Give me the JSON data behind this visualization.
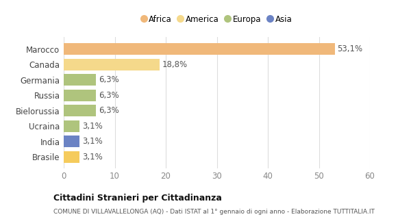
{
  "categories": [
    "Brasile",
    "India",
    "Ucraina",
    "Bielorussia",
    "Russia",
    "Germania",
    "Canada",
    "Marocco"
  ],
  "values": [
    3.1,
    3.1,
    3.1,
    6.3,
    6.3,
    6.3,
    18.8,
    53.1
  ],
  "bar_colors": [
    "#f5cb5c",
    "#6b83c4",
    "#afc47d",
    "#afc47d",
    "#afc47d",
    "#afc47d",
    "#f5d98b",
    "#f0b87a"
  ],
  "labels": [
    "3,1%",
    "3,1%",
    "3,1%",
    "6,3%",
    "6,3%",
    "6,3%",
    "18,8%",
    "53,1%"
  ],
  "show_label": [
    true,
    true,
    true,
    true,
    true,
    true,
    true,
    true
  ],
  "xlim": [
    0,
    60
  ],
  "xticks": [
    0,
    10,
    20,
    30,
    40,
    50,
    60
  ],
  "legend_items": [
    {
      "label": "Africa",
      "color": "#f0b87a"
    },
    {
      "label": "America",
      "color": "#f5d98b"
    },
    {
      "label": "Europa",
      "color": "#afc47d"
    },
    {
      "label": "Asia",
      "color": "#6b83c4"
    }
  ],
  "title": "Cittadini Stranieri per Cittadinanza",
  "subtitle": "COMUNE DI VILLAVALLELONGA (AQ) - Dati ISTAT al 1° gennaio di ogni anno - Elaborazione TUTTITALIA.IT",
  "background_color": "#ffffff",
  "grid_color": "#dddddd",
  "tick_color": "#888888",
  "label_fontsize": 8.5,
  "bar_label_fontsize": 8.5,
  "bar_height": 0.75
}
